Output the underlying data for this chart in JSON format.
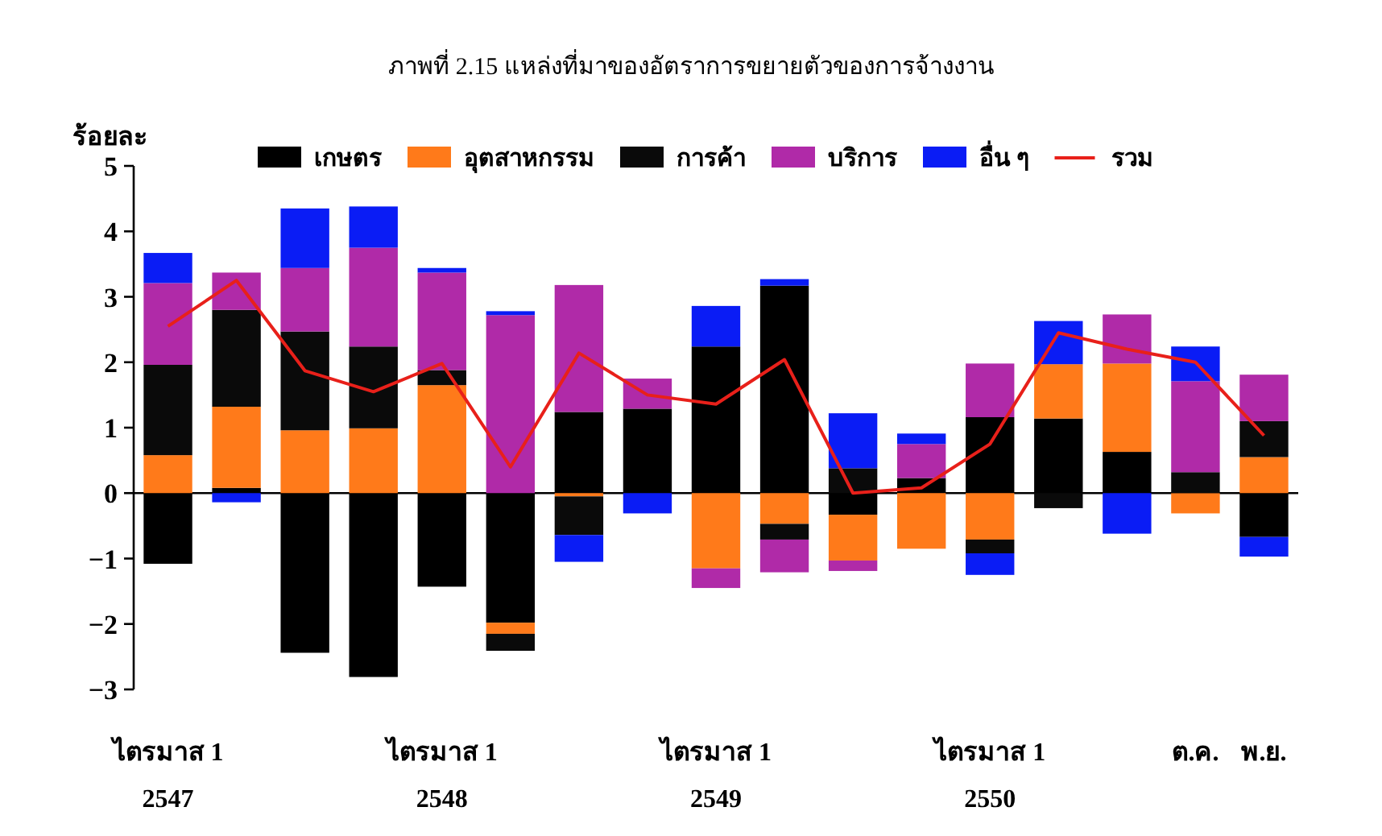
{
  "chart_data": {
    "type": "bar",
    "title": "ภาพที่ 2.15  แหล่งที่มาของอัตราการขยายตัวของการจ้างงาน",
    "ylabel": "ร้อยละ",
    "stacked": true,
    "legend": "top",
    "categories": [
      "ไตรมาส 1\n2547",
      null,
      null,
      null,
      "ไตรมาส 1\n2548",
      null,
      null,
      null,
      "ไตรมาส 1\n2549",
      null,
      null,
      null,
      "ไตรมาส 1\n2550",
      null,
      null,
      "ต.ค.",
      "พ.ย."
    ],
    "ylim": [
      -3,
      5
    ],
    "yticks": [
      -3,
      -2,
      -1,
      0,
      1,
      2,
      3,
      4,
      5
    ],
    "series": [
      {
        "name": "เกษตร",
        "color": "#000000",
        "values": [
          -1.08,
          0.08,
          -2.44,
          -2.81,
          -1.43,
          -1.98,
          1.24,
          1.29,
          2.24,
          3.17,
          -0.33,
          0.23,
          1.16,
          1.14,
          0.63,
          0,
          -0.67
        ]
      },
      {
        "name": "อุตสาหกรรม",
        "color": "#ff7a1a",
        "values": [
          0.58,
          1.24,
          0.96,
          0.99,
          1.65,
          -0.17,
          -0.05,
          0,
          -1.15,
          -0.47,
          -0.7,
          -0.85,
          -0.71,
          0.83,
          1.35,
          -0.31,
          0.55
        ]
      },
      {
        "name": "การค้า",
        "color": "#0a0a0a",
        "values": [
          1.38,
          1.48,
          1.51,
          1.25,
          0.23,
          -0.26,
          -0.59,
          0,
          0,
          -0.24,
          0.38,
          0,
          -0.21,
          -0.23,
          0,
          0.32,
          0.55
        ]
      },
      {
        "name": "บริการ",
        "color": "#b02aa8",
        "values": [
          1.25,
          0.57,
          0.97,
          1.51,
          1.49,
          2.72,
          1.94,
          0.46,
          -0.3,
          -0.5,
          -0.16,
          0.52,
          0.82,
          0,
          0.75,
          1.39,
          0.71
        ]
      },
      {
        "name": "อื่น ๆ",
        "color": "#0a1cf5",
        "values": [
          0.46,
          -0.14,
          0.91,
          0.63,
          0.07,
          0.06,
          -0.41,
          -0.31,
          0.62,
          0.1,
          0.84,
          0.16,
          -0.33,
          0.66,
          -0.62,
          0.53,
          -0.3
        ]
      },
      {
        "name": "รวม",
        "type": "line",
        "color": "#e8201a",
        "values": [
          2.55,
          3.25,
          1.87,
          1.55,
          1.98,
          0.4,
          2.14,
          1.5,
          1.36,
          2.04,
          0.0,
          0.08,
          0.75,
          2.45,
          2.2,
          2.0,
          0.88
        ]
      }
    ]
  }
}
